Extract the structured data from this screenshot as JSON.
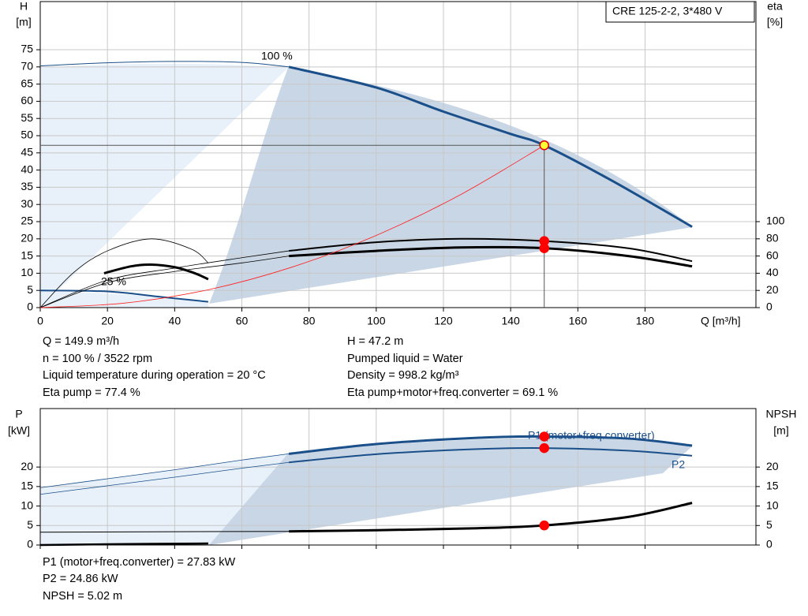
{
  "chart_data": [
    {
      "type": "line",
      "box_title": "CRE 125-2-2, 3*480 V",
      "xlabel": "Q [m³/h]",
      "ylabel": [
        "H",
        "[m]"
      ],
      "y2label": [
        "eta",
        "[%]"
      ],
      "xlim": [
        0,
        213
      ],
      "xticks": [
        0,
        20,
        40,
        60,
        80,
        100,
        120,
        140,
        160,
        180
      ],
      "ylim": [
        0,
        89
      ],
      "yticks": [
        0,
        5,
        10,
        15,
        20,
        25,
        30,
        35,
        40,
        45,
        50,
        55,
        60,
        65,
        70,
        75
      ],
      "y2lim": [
        0,
        356
      ],
      "y2ticks": [
        0,
        20,
        40,
        60,
        80,
        100
      ],
      "grid": true,
      "xtick_labels": true,
      "series": [
        {
          "color": "#1a4f8a",
          "width": 1,
          "x": [
            0,
            20,
            40,
            60,
            74
          ],
          "values": [
            70.3,
            71.2,
            71.6,
            71.3,
            70
          ]
        },
        {
          "name": "100 %",
          "color": "#1a4f8a",
          "width": 3,
          "x": [
            74,
            100,
            120,
            140,
            150,
            170,
            194
          ],
          "values": [
            70,
            64,
            57,
            50.5,
            47.2,
            37,
            23.5
          ]
        },
        {
          "name": "25 %",
          "color": "#1a4f8a",
          "width": 2,
          "x": [
            0,
            20,
            35,
            50
          ],
          "values": [
            5,
            4.7,
            3.2,
            1.7
          ]
        },
        {
          "color": "#000000",
          "width": 0.8,
          "axis": "y2",
          "x": [
            0,
            20,
            40,
            60,
            74
          ],
          "values": [
            0,
            32,
            46,
            58,
            66
          ]
        },
        {
          "color": "#000000",
          "width": 2,
          "axis": "y2",
          "x": [
            74,
            100,
            125,
            150,
            175,
            194
          ],
          "values": [
            66,
            76,
            80,
            77.4,
            69,
            54
          ]
        },
        {
          "color": "#000000",
          "width": 0.8,
          "axis": "y2",
          "x": [
            0,
            20,
            40,
            60,
            74
          ],
          "values": [
            0,
            29,
            42,
            52,
            60
          ]
        },
        {
          "color": "#000000",
          "width": 3,
          "axis": "y2",
          "x": [
            74,
            100,
            125,
            150,
            175,
            194
          ],
          "values": [
            60,
            66,
            70,
            69.1,
            60,
            48
          ]
        },
        {
          "color": "#000000",
          "width": 0.8,
          "axis": "y2",
          "x": [
            0,
            10,
            20,
            33,
            45,
            50
          ],
          "values": [
            0,
            41,
            66,
            80,
            68,
            52
          ]
        },
        {
          "color": "#000000",
          "width": 3,
          "axis": "y2",
          "x": [
            19,
            27,
            33,
            40,
            46,
            50
          ],
          "values": [
            40,
            48,
            50,
            47,
            40,
            33
          ]
        },
        {
          "color": "#ff2020",
          "width": 0.8,
          "x": [
            0,
            25,
            50,
            75,
            100,
            125,
            150
          ],
          "values": [
            0,
            1.3,
            5.2,
            11.8,
            21,
            32.8,
            47.2
          ]
        }
      ],
      "points": [
        {
          "x": 150,
          "y": 47.2,
          "color": "#ffff33",
          "edge": "#e00000",
          "guides": true
        },
        {
          "x": 150,
          "y": 77.4,
          "axis": "y2",
          "color": "#ff0000",
          "edge": "#ff0000"
        },
        {
          "x": 150,
          "y": 69.1,
          "axis": "y2",
          "color": "#ff0000",
          "edge": "#ff0000"
        }
      ],
      "info_left": [
        "Q = 149.9 m³/h",
        "n = 100 % / 3522 rpm",
        "Liquid temperature during operation = 20 °C",
        "Eta pump = 77.4 %"
      ],
      "info_right": [
        "H = 47.2 m",
        "Pumped liquid = Water",
        "Density = 998.2 kg/m³",
        "Eta pump+motor+freq.converter = 69.1 %"
      ]
    },
    {
      "type": "line",
      "ylabel": [
        "P",
        "[kW]"
      ],
      "y2label": [
        "NPSH",
        "[m]"
      ],
      "xlim": [
        0,
        213
      ],
      "xticks": [
        0,
        20,
        40,
        60,
        80,
        100,
        120,
        140,
        160,
        180
      ],
      "ylim": [
        0,
        35
      ],
      "yticks": [
        0,
        5,
        10,
        15,
        20
      ],
      "y2lim": [
        0,
        35
      ],
      "y2ticks": [
        0,
        5,
        10,
        15,
        20
      ],
      "grid": true,
      "xtick_labels": false,
      "series": [
        {
          "color": "#1a4f8a",
          "width": 0.8,
          "x": [
            0,
            20,
            40,
            60,
            74
          ],
          "values": [
            14.7,
            17,
            19.3,
            21.8,
            23.4
          ]
        },
        {
          "name": "P1 (motor+freq.converter)",
          "color": "#1a4f8a",
          "width": 3,
          "x": [
            74,
            100,
            130,
            150,
            175,
            194
          ],
          "values": [
            23.4,
            25.9,
            27.5,
            27.83,
            27.3,
            25.5
          ]
        },
        {
          "color": "#1a4f8a",
          "width": 0.8,
          "x": [
            0,
            20,
            40,
            60,
            74
          ],
          "values": [
            13,
            15.2,
            17.4,
            19.7,
            21.2
          ]
        },
        {
          "name": "P2",
          "color": "#1a4f8a",
          "width": 2,
          "x": [
            74,
            100,
            130,
            150,
            175,
            194
          ],
          "values": [
            21.2,
            23.3,
            24.6,
            24.86,
            24.2,
            22.9
          ]
        },
        {
          "color": "#000000",
          "width": 1,
          "axis": "y2",
          "x": [
            0,
            74
          ],
          "values": [
            3.3,
            3.5
          ]
        },
        {
          "color": "#000000",
          "width": 3,
          "axis": "y2",
          "x": [
            74,
            100,
            130,
            150,
            175,
            194
          ],
          "values": [
            3.5,
            3.8,
            4.3,
            5.02,
            7.2,
            10.8
          ]
        },
        {
          "color": "#000000",
          "width": 2.5,
          "axis": "y2",
          "x": [
            0,
            20,
            50
          ],
          "values": [
            0,
            0.2,
            0.4
          ]
        }
      ],
      "points": [
        {
          "x": 150,
          "y": 27.83,
          "color": "#ff0000",
          "edge": "#ff0000"
        },
        {
          "x": 150,
          "y": 24.86,
          "color": "#ff0000",
          "edge": "#ff0000"
        },
        {
          "x": 150,
          "y": 5.02,
          "axis": "y2",
          "color": "#ff0000",
          "edge": "#ff0000"
        }
      ],
      "info_left": [
        "P1 (motor+freq.converter) = 27.83 kW",
        "P2 = 24.86 kW",
        "NPSH = 5.02 m"
      ]
    }
  ]
}
